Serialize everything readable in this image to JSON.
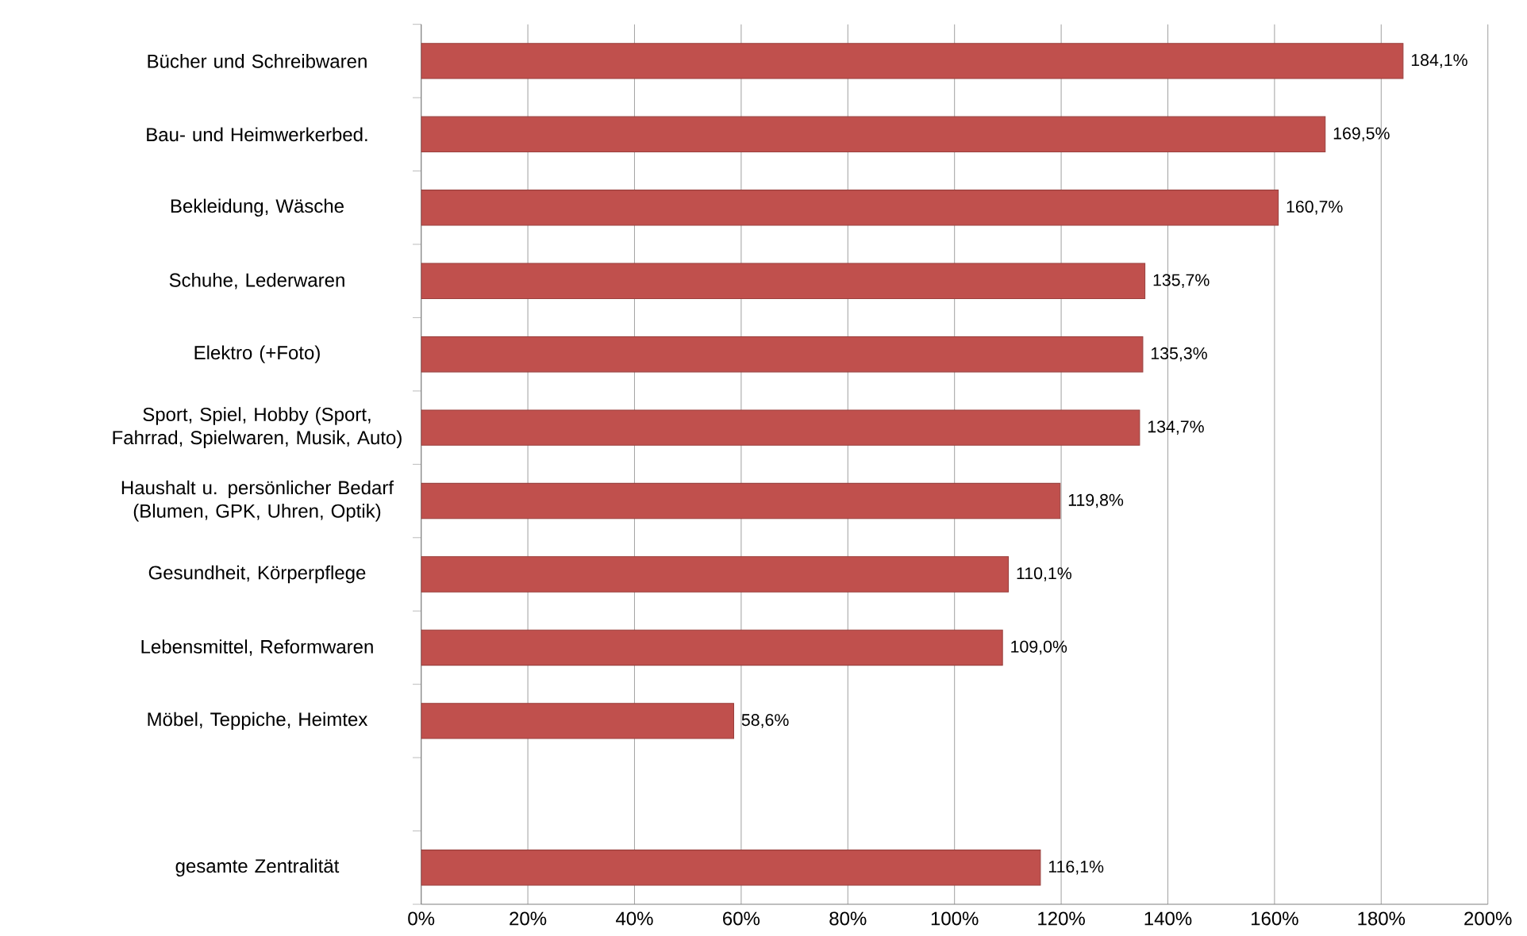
{
  "chart_data": {
    "type": "bar",
    "orientation": "horizontal",
    "categories": [
      "Bücher und Schreibwaren",
      "Bau- und Heimwerkerbed.",
      "Bekleidung, Wäsche",
      "Schuhe, Lederwaren",
      "Elektro (+Foto)",
      "Sport, Spiel, Hobby (Sport, Fahrrad, Spielwaren, Musik, Auto)",
      "Haushalt u. persönlicher Bedarf (Blumen, GPK, Uhren, Optik)",
      "Gesundheit, Körperpflege",
      "Lebensmittel, Reformwaren",
      "Möbel, Teppiche, Heimtex",
      null,
      "gesamte Zentralität"
    ],
    "values": [
      184.1,
      169.5,
      160.7,
      135.7,
      135.3,
      134.7,
      119.8,
      110.1,
      109.0,
      58.6,
      null,
      116.1
    ],
    "value_labels": [
      "184,1%",
      "169,5%",
      "160,7%",
      "135,7%",
      "135,3%",
      "134,7%",
      "119,8%",
      "110,1%",
      "109,0%",
      "58,6%",
      null,
      "116,1%"
    ],
    "color": "#c0504d",
    "xlim": [
      0,
      200
    ],
    "xticks": [
      {
        "value": 0,
        "label": "0%"
      },
      {
        "value": 20,
        "label": "20%"
      },
      {
        "value": 40,
        "label": "40%"
      },
      {
        "value": 60,
        "label": "60%"
      },
      {
        "value": 80,
        "label": "80%"
      },
      {
        "value": 100,
        "label": "100%"
      },
      {
        "value": 120,
        "label": "120%"
      },
      {
        "value": 140,
        "label": "140%"
      },
      {
        "value": 160,
        "label": "160%"
      },
      {
        "value": 180,
        "label": "180%"
      },
      {
        "value": 200,
        "label": "200%"
      }
    ],
    "grid": "x"
  }
}
